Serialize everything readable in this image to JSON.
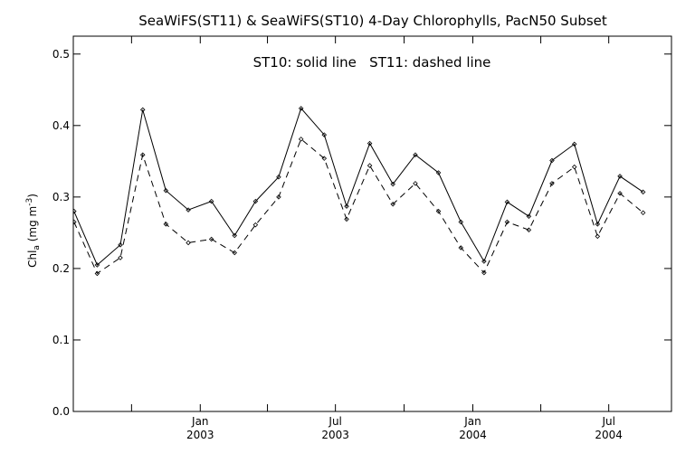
{
  "chart_data": {
    "type": "line",
    "title": "SeaWiFS(ST11) & SeaWiFS(ST10) 4-Day Chlorophylls, PacN50 Subset",
    "annotation": "ST10: solid line   ST11: dashed line",
    "ylabel": {
      "base": "Chl",
      "sub": "a",
      "units": " (mg m",
      "sup": "-3",
      "close": ")"
    },
    "ylim": [
      0.0,
      0.525
    ],
    "yticks": [
      {
        "value": 0.0,
        "label": "0.0"
      },
      {
        "value": 0.1,
        "label": "0.1"
      },
      {
        "value": 0.2,
        "label": "0.2"
      },
      {
        "value": 0.3,
        "label": "0.3"
      },
      {
        "value": 0.4,
        "label": "0.4"
      },
      {
        "value": 0.5,
        "label": "0.5"
      }
    ],
    "xlim": [
      "2002-07-15",
      "2004-09-23"
    ],
    "xticks": [
      {
        "date": "2002-10-01",
        "label": ""
      },
      {
        "date": "2003-01-01",
        "label": "Jan",
        "year": "2003"
      },
      {
        "date": "2003-04-01",
        "label": ""
      },
      {
        "date": "2003-07-01",
        "label": "Jul",
        "year": "2003"
      },
      {
        "date": "2003-10-01",
        "label": ""
      },
      {
        "date": "2004-01-01",
        "label": "Jan",
        "year": "2004"
      },
      {
        "date": "2004-04-01",
        "label": ""
      },
      {
        "date": "2004-07-01",
        "label": "Jul",
        "year": "2004"
      }
    ],
    "x": [
      "2002-07-16",
      "2002-08-16",
      "2002-09-16",
      "2002-10-16",
      "2002-11-16",
      "2002-12-16",
      "2003-01-16",
      "2003-02-16",
      "2003-03-16",
      "2003-04-16",
      "2003-05-16",
      "2003-06-16",
      "2003-07-16",
      "2003-08-16",
      "2003-09-16",
      "2003-10-16",
      "2003-11-16",
      "2003-12-16",
      "2004-01-16",
      "2004-02-16",
      "2004-03-16",
      "2004-04-16",
      "2004-05-16",
      "2004-06-16",
      "2004-07-16",
      "2004-08-16"
    ],
    "series": [
      {
        "name": "ST10",
        "style": "solid",
        "values": [
          0.28,
          0.205,
          0.233,
          0.422,
          0.309,
          0.282,
          0.294,
          0.246,
          0.294,
          0.328,
          0.424,
          0.387,
          0.287,
          0.375,
          0.318,
          0.359,
          0.334,
          0.265,
          0.21,
          0.293,
          0.273,
          0.351,
          0.374,
          0.262,
          0.329,
          0.307
        ]
      },
      {
        "name": "ST11",
        "style": "dashed",
        "values": [
          0.265,
          0.193,
          0.215,
          0.359,
          0.262,
          0.236,
          0.241,
          0.222,
          0.261,
          0.3,
          0.381,
          0.354,
          0.269,
          0.344,
          0.29,
          0.319,
          0.28,
          0.229,
          0.194,
          0.265,
          0.254,
          0.319,
          0.342,
          0.245,
          0.305,
          0.278
        ]
      }
    ],
    "grid": false,
    "colors": {
      "line": "#000000",
      "background": "#ffffff"
    }
  }
}
